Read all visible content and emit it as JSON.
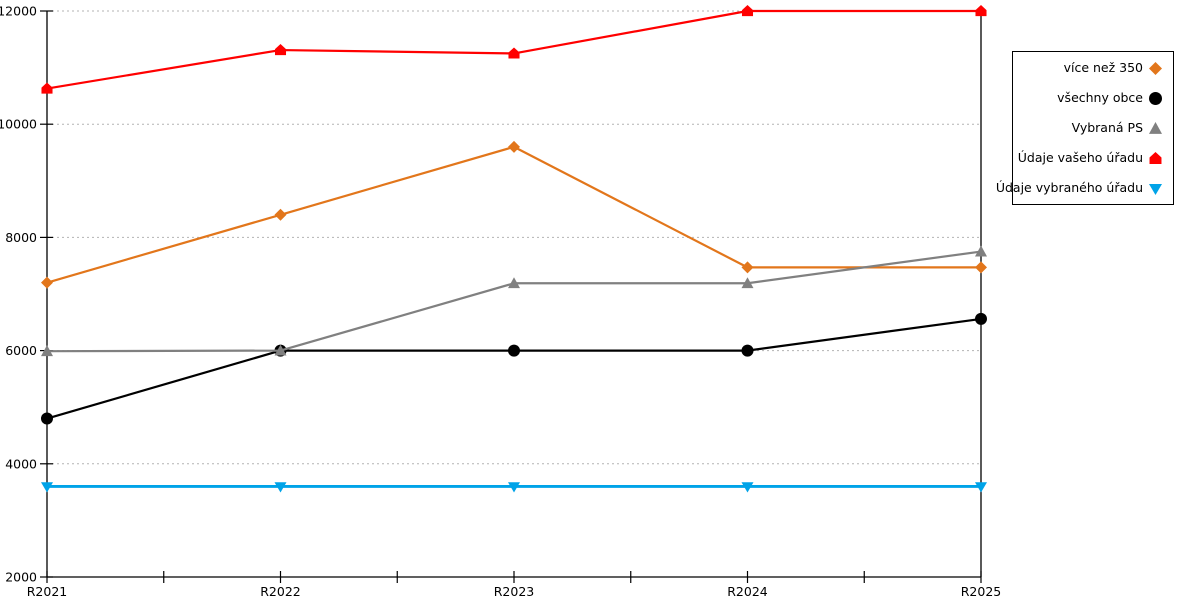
{
  "chart_data": {
    "type": "line",
    "title": "",
    "xlabel": "",
    "ylabel": "",
    "categories": [
      "R2021",
      "R2022",
      "R2023",
      "R2024",
      "R2025"
    ],
    "series": [
      {
        "key": "vice-nez-350",
        "name": "více než 350",
        "color": "#E2761B",
        "marker": "diamond",
        "line_width": 2.2,
        "values": [
          7200,
          8400,
          9600,
          7470,
          7470
        ]
      },
      {
        "key": "vsechny-obce",
        "name": "všechny obce",
        "color": "#000000",
        "marker": "circle",
        "line_width": 2.2,
        "values": [
          4800,
          6000,
          6000,
          6000,
          6560
        ]
      },
      {
        "key": "vybrana-ps",
        "name": "Vybraná PS",
        "color": "#808080",
        "marker": "triangle-up",
        "line_width": 2.2,
        "values": [
          5990,
          6000,
          7190,
          7190,
          7750
        ]
      },
      {
        "key": "udaje-vaseho-uradu",
        "name": "Údaje vašeho úřadu",
        "color": "#FF0000",
        "marker": "pentagon",
        "line_width": 2.2,
        "values": [
          10630,
          11310,
          11250,
          12000,
          12000
        ]
      },
      {
        "key": "udaje-vybraneho-uradu",
        "name": "Údaje vybraného úřadu",
        "color": "#00A3E8",
        "marker": "triangle-down",
        "line_width": 2.8,
        "values": [
          3600,
          3600,
          3600,
          3600,
          3600
        ]
      }
    ],
    "ylim": [
      2000,
      12000
    ],
    "ytick_step": 2000,
    "ytick_labels": [
      "2000",
      "4000",
      "6000",
      "8000",
      "10000",
      "12000"
    ],
    "grid": "horizontal-dotted",
    "grid_color": "#B3B3B3",
    "axis_color": "#000000",
    "legend_position": "right"
  }
}
